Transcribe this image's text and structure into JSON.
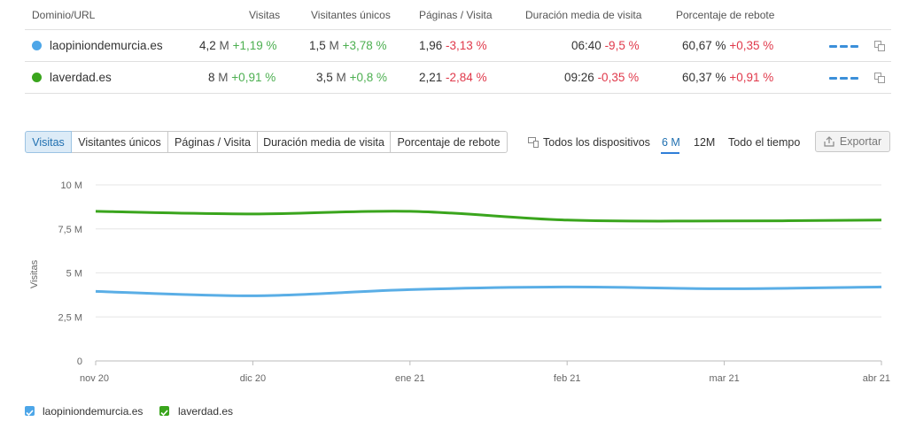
{
  "table": {
    "headers": {
      "domain": "Dominio/URL",
      "visits": "Visitas",
      "unique": "Visitantes únicos",
      "pages": "Páginas / Visita",
      "duration": "Duración media de visita",
      "bounce": "Porcentaje de rebote"
    },
    "rows": [
      {
        "color": "#4da6e8",
        "domain": "laopiniondemurcia.es",
        "visits_value": "4,2",
        "visits_unit": "M",
        "visits_change": "+1,19 %",
        "unique_value": "1,5",
        "unique_unit": "M",
        "unique_change": "+3,78 %",
        "pages_value": "1,96",
        "pages_change": "-3,13 %",
        "duration_value": "06:40",
        "duration_change": "-9,5 %",
        "bounce_value": "60,67 %",
        "bounce_change": "+0,35 %"
      },
      {
        "color": "#3aa51d",
        "domain": "laverdad.es",
        "visits_value": "8",
        "visits_unit": "M",
        "visits_change": "+0,91 %",
        "unique_value": "3,5",
        "unique_unit": "M",
        "unique_change": "+0,8 %",
        "pages_value": "2,21",
        "pages_change": "-2,84 %",
        "duration_value": "09:26",
        "duration_change": "-0,35 %",
        "bounce_value": "60,37 %",
        "bounce_change": "+0,91 %"
      }
    ]
  },
  "metric_tabs": [
    "Visitas",
    "Visitantes únicos",
    "Páginas / Visita",
    "Duración media de visita",
    "Porcentaje de rebote"
  ],
  "devices_label": "Todos los dispositivos",
  "periods": [
    "6 M",
    "12M",
    "Todo el tiempo"
  ],
  "export_label": "Exportar",
  "chart_data": {
    "type": "line",
    "ylabel": "Visitas",
    "ylim": [
      0,
      10
    ],
    "y_ticks": [
      "0",
      "2,5 M",
      "5 M",
      "7,5 M",
      "10 M"
    ],
    "x_ticks": [
      "nov 20",
      "dic 20",
      "ene 21",
      "feb 21",
      "mar 21",
      "abr 21"
    ],
    "grid": true,
    "legend_position": "bottom-left",
    "series": [
      {
        "name": "laopiniondemurcia.es",
        "color": "#5aaee6",
        "values": [
          3.95,
          3.7,
          4.05,
          4.2,
          4.1,
          4.2
        ]
      },
      {
        "name": "laverdad.es",
        "color": "#3aa51d",
        "values": [
          8.5,
          8.35,
          8.5,
          8.0,
          7.95,
          8.0
        ]
      }
    ]
  },
  "legend": [
    {
      "label": "laopiniondemurcia.es",
      "color": "#4da6e8"
    },
    {
      "label": "laverdad.es",
      "color": "#3aa51d"
    }
  ]
}
